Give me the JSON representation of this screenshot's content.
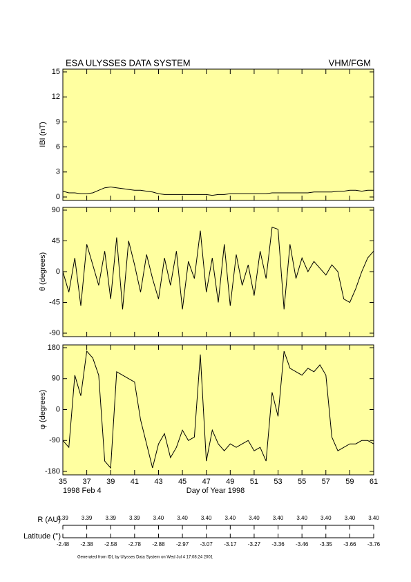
{
  "header": {
    "title": "ESA ULYSSES DATA SYSTEM",
    "instrument": "VHM/FGM"
  },
  "chart_data": [
    {
      "type": "line",
      "ylabel": "IBI (nT)",
      "background": "#ffffa0",
      "xlim": [
        35,
        61
      ],
      "ylim": [
        0,
        15
      ],
      "yticks": [
        0,
        3,
        6,
        9,
        12,
        15
      ],
      "x": [
        35,
        35.5,
        36,
        36.5,
        37,
        37.5,
        38,
        38.5,
        39,
        39.5,
        40,
        40.5,
        41,
        41.5,
        42,
        42.5,
        43,
        43.5,
        44,
        44.5,
        45,
        45.5,
        46,
        46.5,
        47,
        47.5,
        48,
        48.5,
        49,
        49.5,
        50,
        50.5,
        51,
        51.5,
        52,
        52.5,
        53,
        53.5,
        54,
        54.5,
        55,
        55.5,
        56,
        56.5,
        57,
        57.5,
        58,
        58.5,
        59,
        59.5,
        60,
        60.5,
        61
      ],
      "series": [
        {
          "color": "#000000",
          "values": [
            0.7,
            0.5,
            0.5,
            0.4,
            0.4,
            0.5,
            0.8,
            1.1,
            1.2,
            1.1,
            1.0,
            0.9,
            0.8,
            0.8,
            0.7,
            0.6,
            0.4,
            0.3,
            0.3,
            0.3,
            0.3,
            0.3,
            0.3,
            0.3,
            0.3,
            0.2,
            0.3,
            0.3,
            0.4,
            0.4,
            0.4,
            0.4,
            0.4,
            0.4,
            0.4,
            0.5,
            0.5,
            0.5,
            0.5,
            0.5,
            0.5,
            0.5,
            0.6,
            0.6,
            0.6,
            0.6,
            0.7,
            0.7,
            0.8,
            0.8,
            0.7,
            0.8,
            0.8
          ]
        }
      ]
    },
    {
      "type": "line",
      "ylabel": "θ (degrees)",
      "background": "#ffffa0",
      "xlim": [
        35,
        61
      ],
      "ylim": [
        -90,
        90
      ],
      "yticks": [
        -90,
        -45,
        0,
        45,
        90
      ],
      "x": [
        35,
        35.5,
        36,
        36.5,
        37,
        37.5,
        38,
        38.5,
        39,
        39.5,
        40,
        40.5,
        41,
        41.5,
        42,
        42.5,
        43,
        43.5,
        44,
        44.5,
        45,
        45.5,
        46,
        46.5,
        47,
        47.5,
        48,
        48.5,
        49,
        49.5,
        50,
        50.5,
        51,
        51.5,
        52,
        52.5,
        53,
        53.5,
        54,
        54.5,
        55,
        55.5,
        56,
        56.5,
        57,
        57.5,
        58,
        58.5,
        59,
        59.5,
        60,
        60.5,
        61
      ],
      "series": [
        {
          "color": "#000000",
          "values": [
            0,
            -30,
            20,
            -50,
            40,
            10,
            -20,
            30,
            -40,
            50,
            -55,
            45,
            10,
            -30,
            25,
            -10,
            -40,
            20,
            -20,
            30,
            -55,
            15,
            -10,
            60,
            -30,
            20,
            -45,
            40,
            -50,
            25,
            -20,
            10,
            -35,
            30,
            -10,
            65,
            62,
            -55,
            40,
            -10,
            20,
            0,
            15,
            5,
            -5,
            10,
            0,
            -40,
            -45,
            -25,
            0,
            20,
            30
          ]
        }
      ]
    },
    {
      "type": "line",
      "ylabel": "φ (degrees)",
      "xlabel": "Day of Year 1998",
      "start_date": "1998 Feb  4",
      "background": "#ffffa0",
      "xlim": [
        35,
        61
      ],
      "ylim": [
        -180,
        180
      ],
      "yticks": [
        -180,
        -90,
        0,
        90,
        180
      ],
      "xticks": [
        35,
        37,
        39,
        41,
        43,
        45,
        47,
        49,
        51,
        53,
        55,
        57,
        59,
        61
      ],
      "x": [
        35,
        35.5,
        36,
        36.5,
        37,
        37.5,
        38,
        38.5,
        39,
        39.5,
        40,
        40.5,
        41,
        41.5,
        42,
        42.5,
        43,
        43.5,
        44,
        44.5,
        45,
        45.5,
        46,
        46.5,
        47,
        47.5,
        48,
        48.5,
        49,
        49.5,
        50,
        50.5,
        51,
        51.5,
        52,
        52.5,
        53,
        53.5,
        54,
        54.5,
        55,
        55.5,
        56,
        56.5,
        57,
        57.5,
        58,
        58.5,
        59,
        59.5,
        60,
        60.5,
        61
      ],
      "series": [
        {
          "color": "#000000",
          "values": [
            -90,
            -110,
            100,
            40,
            170,
            150,
            100,
            -150,
            -170,
            110,
            100,
            90,
            80,
            -30,
            -100,
            -170,
            -100,
            -70,
            -140,
            -110,
            -60,
            -90,
            -80,
            160,
            -150,
            -60,
            -100,
            -120,
            -100,
            -110,
            -100,
            -90,
            -120,
            -110,
            -150,
            50,
            -20,
            170,
            120,
            110,
            100,
            120,
            110,
            130,
            100,
            -80,
            -120,
            -110,
            -100,
            -100,
            -90,
            -90,
            -100
          ]
        }
      ]
    }
  ],
  "orbit": {
    "r_label": "R (AU)",
    "r_values": [
      "3.39",
      "3.39",
      "3.39",
      "3.39",
      "3.40",
      "3.40",
      "3.40",
      "3.40",
      "3.40",
      "3.40",
      "3.40",
      "3.40",
      "3.40",
      "3.40"
    ],
    "lat_label": "Latitude (°)",
    "lat_values": [
      "-2.48",
      "-2.38",
      "-2.58",
      "-2.78",
      "-2.88",
      "-2.97",
      "-3.07",
      "-3.17",
      "-3.27",
      "-3.36",
      "-3.46",
      "-3.35",
      "-3.66",
      "-3.76"
    ]
  },
  "footer": "Generated from IDL by Ulysses Data System on Wed Jul  4 17:08:24 2001"
}
